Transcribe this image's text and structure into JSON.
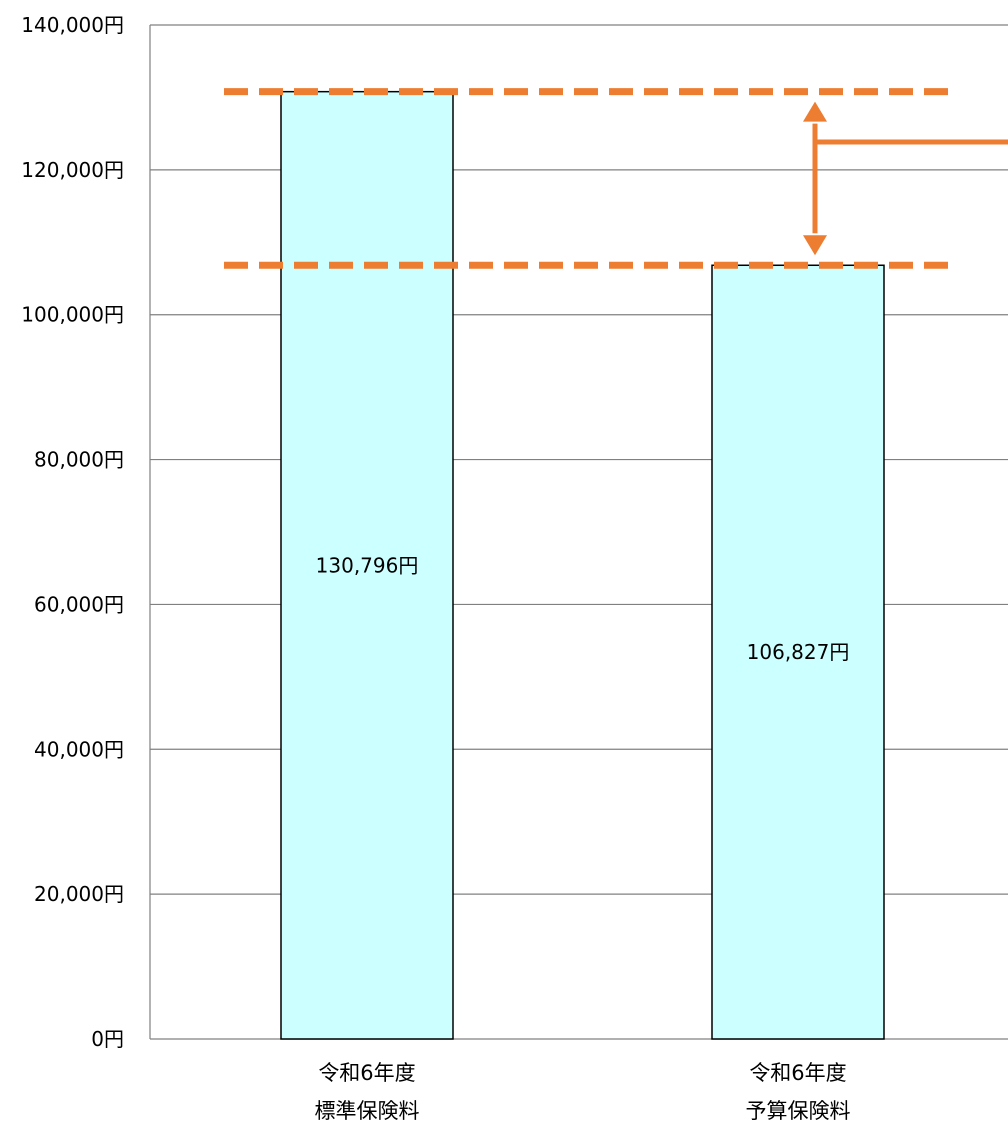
{
  "chart_data": {
    "type": "bar",
    "title": "",
    "xlabel": "",
    "ylabel": "",
    "ylim": [
      0,
      140000
    ],
    "yticks": [
      0,
      20000,
      40000,
      60000,
      80000,
      100000,
      120000,
      140000
    ],
    "ytick_labels": [
      "0円",
      "20,000円",
      "40,000円",
      "60,000円",
      "80,000円",
      "100,000円",
      "120,000円",
      "140,000円"
    ],
    "grid": true,
    "categories": [
      {
        "line1": "令和6年度",
        "line2": "標準保険料"
      },
      {
        "line1": "令和6年度",
        "line2": "予算保険料"
      }
    ],
    "values": [
      130796,
      106827
    ],
    "data_labels": [
      "130,796円",
      "106,827円"
    ],
    "colors": {
      "bar_fill": "#ccffff",
      "bar_stroke": "#000000",
      "grid": "#808080",
      "annotation": "#ed7d31"
    },
    "annotation": {
      "type": "difference-bracket",
      "from_value": 130796,
      "to_value": 106827
    }
  }
}
